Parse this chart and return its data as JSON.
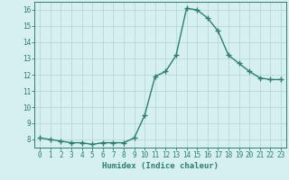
{
  "x": [
    0,
    1,
    2,
    3,
    4,
    5,
    6,
    7,
    8,
    9,
    10,
    11,
    12,
    13,
    14,
    15,
    16,
    17,
    18,
    19,
    20,
    21,
    22,
    23
  ],
  "y": [
    8.1,
    8.0,
    7.9,
    7.8,
    7.8,
    7.7,
    7.8,
    7.8,
    7.8,
    8.1,
    9.5,
    11.9,
    12.2,
    13.2,
    16.1,
    16.0,
    15.5,
    14.7,
    13.2,
    12.7,
    12.2,
    11.8,
    11.7,
    11.7
  ],
  "line_color": "#2e7d6e",
  "marker": "+",
  "bg_color": "#d6f0ef",
  "grid_color": "#b8d8d6",
  "xlabel": "Humidex (Indice chaleur)",
  "xlim": [
    -0.5,
    23.5
  ],
  "ylim": [
    7.5,
    16.5
  ],
  "xticks": [
    0,
    1,
    2,
    3,
    4,
    5,
    6,
    7,
    8,
    9,
    10,
    11,
    12,
    13,
    14,
    15,
    16,
    17,
    18,
    19,
    20,
    21,
    22,
    23
  ],
  "yticks": [
    8,
    9,
    10,
    11,
    12,
    13,
    14,
    15,
    16
  ],
  "font_color": "#2e7d6e",
  "linewidth": 1.0,
  "markersize": 4,
  "tick_fontsize": 5.5,
  "xlabel_fontsize": 6.5
}
